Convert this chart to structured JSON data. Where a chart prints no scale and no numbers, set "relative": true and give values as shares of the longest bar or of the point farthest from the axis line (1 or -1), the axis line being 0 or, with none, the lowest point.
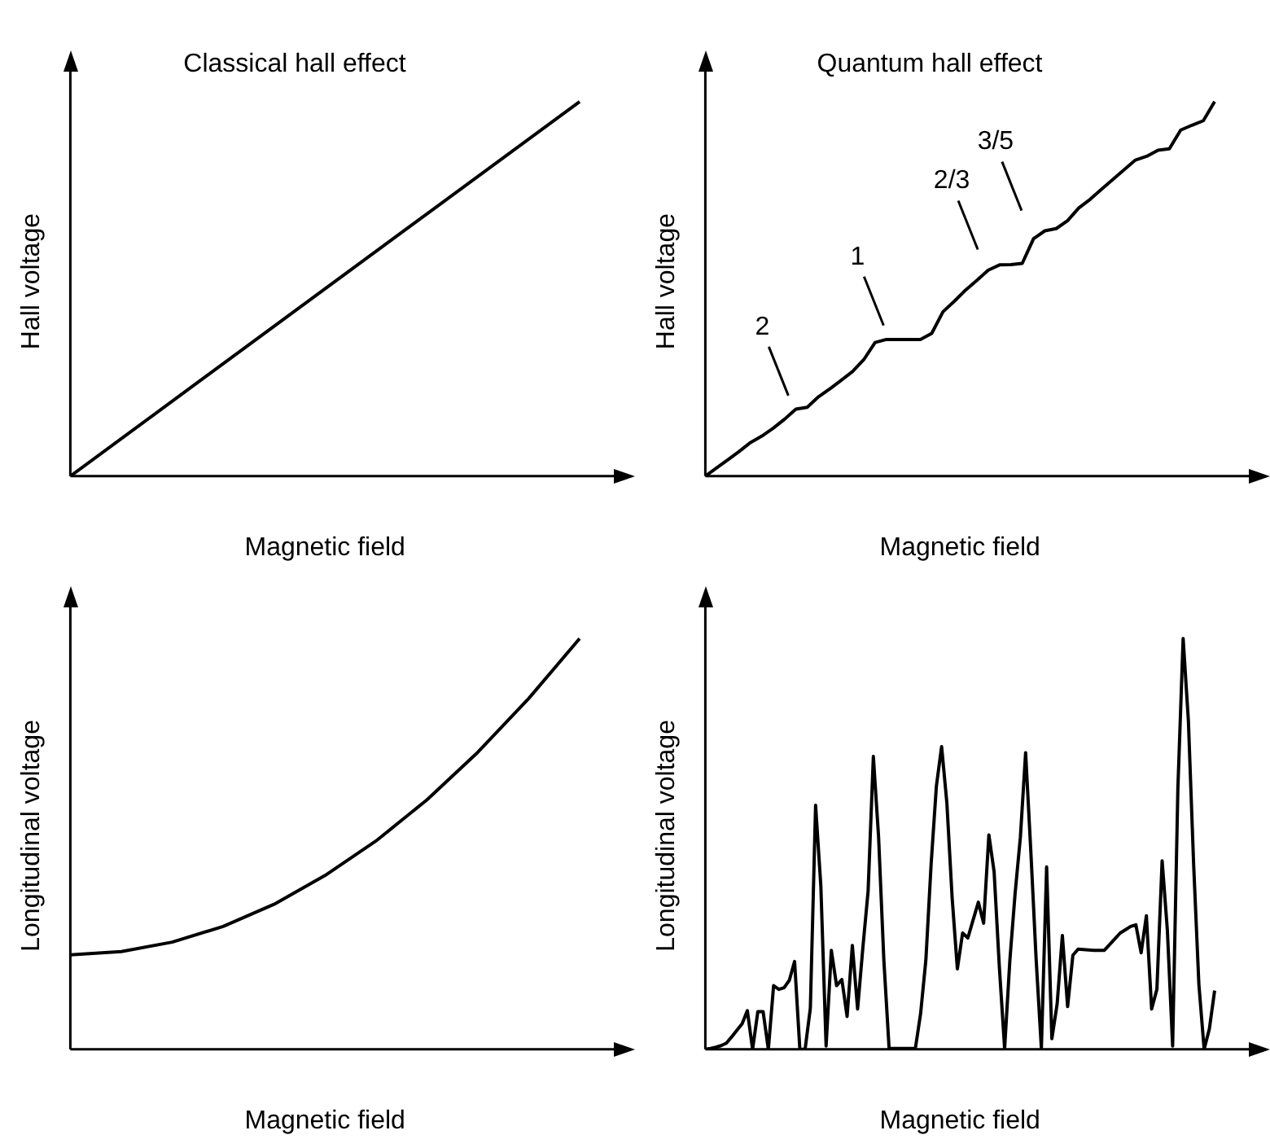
{
  "chart_data": [
    {
      "type": "line",
      "title": "Classical hall effect",
      "xlabel": "Magnetic field",
      "ylabel": "Hall voltage",
      "relative": true,
      "categories": [
        null,
        null
      ],
      "series": [
        {
          "color": "#000000",
          "values": [
            0,
            1
          ]
        }
      ]
    },
    {
      "type": "line",
      "title": "Quantum hall effect",
      "xlabel": "Magnetic field",
      "ylabel": "Hall voltage",
      "relative": true,
      "annotations": [
        "2",
        "1",
        "2/3",
        "3/5"
      ],
      "categories": [
        null,
        null,
        null,
        null,
        null,
        null,
        null,
        null,
        null,
        null,
        null,
        null,
        null,
        null,
        null,
        null,
        null,
        null,
        null,
        null,
        null,
        null,
        null,
        null,
        null,
        null,
        null,
        null,
        null,
        null,
        null,
        null,
        null,
        null,
        null,
        null,
        null,
        null,
        null,
        null,
        null,
        null,
        null,
        null,
        null,
        null
      ],
      "series": [
        {
          "color": "#000000",
          "values": [
            0,
            0.022,
            0.044,
            0.066,
            0.09,
            0.107,
            0.128,
            0.152,
            0.179,
            0.184,
            0.212,
            0.233,
            0.256,
            0.279,
            0.311,
            0.357,
            0.365,
            0.365,
            0.365,
            0.365,
            0.381,
            0.439,
            0.467,
            0.497,
            0.523,
            0.55,
            0.564,
            0.565,
            0.568,
            0.634,
            0.655,
            0.661,
            0.682,
            0.716,
            0.739,
            0.766,
            0.792,
            0.818,
            0.844,
            0.854,
            0.87,
            0.874,
            0.924,
            0.937,
            0.949,
            1
          ]
        }
      ]
    },
    {
      "type": "line",
      "xlabel": "Magnetic field",
      "ylabel": "Longitudinal voltage",
      "relative": true,
      "categories": [
        null,
        null,
        null,
        null,
        null,
        null,
        null,
        null,
        null,
        null,
        null
      ],
      "series": [
        {
          "color": "#000000",
          "values": [
            0.23,
            0.238,
            0.261,
            0.299,
            0.353,
            0.423,
            0.507,
            0.607,
            0.723,
            0.854,
            1
          ]
        }
      ]
    },
    {
      "type": "line",
      "xlabel": "Magnetic field",
      "ylabel": "Longitudinal voltage",
      "relative": true,
      "categories": [
        null,
        null,
        null,
        null,
        null,
        null,
        null,
        null,
        null,
        null,
        null,
        null,
        null,
        null,
        null,
        null,
        null,
        null,
        null,
        null,
        null,
        null,
        null,
        null,
        null,
        null,
        null,
        null,
        null,
        null,
        null,
        null,
        null,
        null,
        null,
        null,
        null,
        null,
        null,
        null,
        null,
        null,
        null,
        null,
        null,
        null,
        null,
        null,
        null,
        null,
        null,
        null,
        null,
        null,
        null,
        null,
        null,
        null,
        null,
        null,
        null,
        null,
        null,
        null,
        null,
        null,
        null,
        null,
        null,
        null,
        null,
        null,
        null,
        null,
        null,
        null,
        null,
        null,
        null,
        null,
        null,
        null,
        null,
        null,
        null,
        null,
        null,
        null,
        null,
        null,
        null,
        null,
        null,
        null,
        null,
        null,
        null,
        null
      ],
      "series": [
        {
          "color": "#000000",
          "values": [
            0,
            0.002,
            0.005,
            0.009,
            0.015,
            0.03,
            0.046,
            0.062,
            0.094,
            0,
            0.092,
            0.092,
            0,
            0.155,
            0.146,
            0.15,
            0.168,
            0.214,
            0,
            0,
            0.1,
            0.594,
            0.397,
            0.008,
            0.241,
            0.155,
            0.17,
            0.08,
            0.253,
            0.098,
            0.247,
            0.385,
            0.713,
            0.516,
            0.217,
            0.002,
            0.002,
            0.002,
            0.002,
            0.002,
            0.002,
            0.087,
            0.217,
            0.45,
            0.64,
            0.737,
            0.6,
            0.37,
            0.196,
            0.283,
            0.271,
            0.315,
            0.358,
            0.307,
            0.522,
            0.432,
            0.2,
            0.002,
            0.217,
            0.38,
            0.516,
            0.722,
            0.48,
            0.22,
            0.002,
            0.444,
            0.026,
            0.11,
            0.277,
            0.104,
            0.229,
            0.244,
            0.243,
            0.242,
            0.241,
            0.241,
            0.241,
            0.255,
            0.269,
            0.283,
            0.291,
            0.299,
            0.303,
            0.235,
            0.325,
            0.098,
            0.146,
            0.459,
            0.289,
            0.008,
            0.636,
            1,
            0.8,
            0.45,
            0.158,
            0,
            0.05,
            0.143
          ]
        }
      ]
    }
  ]
}
